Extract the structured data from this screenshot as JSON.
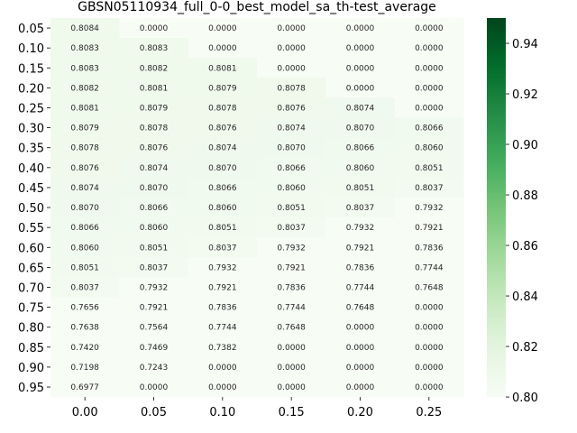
{
  "chart_data": {
    "type": "heatmap",
    "title": "GBSN05110934_full_0-0_best_model_sa_th-test_average",
    "xlabel": "",
    "ylabel": "",
    "x_categories": [
      "0.00",
      "0.05",
      "0.10",
      "0.15",
      "0.20",
      "0.25"
    ],
    "y_categories": [
      "0.05",
      "0.10",
      "0.15",
      "0.20",
      "0.25",
      "0.30",
      "0.35",
      "0.40",
      "0.45",
      "0.50",
      "0.55",
      "0.60",
      "0.65",
      "0.70",
      "0.75",
      "0.80",
      "0.85",
      "0.90",
      "0.95"
    ],
    "values": [
      [
        "0.8084",
        "0.0000",
        "0.0000",
        "0.0000",
        "0.0000",
        "0.0000"
      ],
      [
        "0.8083",
        "0.8083",
        "0.0000",
        "0.0000",
        "0.0000",
        "0.0000"
      ],
      [
        "0.8083",
        "0.8082",
        "0.8081",
        "0.0000",
        "0.0000",
        "0.0000"
      ],
      [
        "0.8082",
        "0.8081",
        "0.8079",
        "0.8078",
        "0.0000",
        "0.0000"
      ],
      [
        "0.8081",
        "0.8079",
        "0.8078",
        "0.8076",
        "0.8074",
        "0.0000"
      ],
      [
        "0.8079",
        "0.8078",
        "0.8076",
        "0.8074",
        "0.8070",
        "0.8066"
      ],
      [
        "0.8078",
        "0.8076",
        "0.8074",
        "0.8070",
        "0.8066",
        "0.8060"
      ],
      [
        "0.8076",
        "0.8074",
        "0.8070",
        "0.8066",
        "0.8060",
        "0.8051"
      ],
      [
        "0.8074",
        "0.8070",
        "0.8066",
        "0.8060",
        "0.8051",
        "0.8037"
      ],
      [
        "0.8070",
        "0.8066",
        "0.8060",
        "0.8051",
        "0.8037",
        "0.7932"
      ],
      [
        "0.8066",
        "0.8060",
        "0.8051",
        "0.8037",
        "0.7932",
        "0.7921"
      ],
      [
        "0.8060",
        "0.8051",
        "0.8037",
        "0.7932",
        "0.7921",
        "0.7836"
      ],
      [
        "0.8051",
        "0.8037",
        "0.7932",
        "0.7921",
        "0.7836",
        "0.7744"
      ],
      [
        "0.8037",
        "0.7932",
        "0.7921",
        "0.7836",
        "0.7744",
        "0.7648"
      ],
      [
        "0.7656",
        "0.7921",
        "0.7836",
        "0.7744",
        "0.7648",
        "0.0000"
      ],
      [
        "0.7638",
        "0.7564",
        "0.7744",
        "0.7648",
        "0.0000",
        "0.0000"
      ],
      [
        "0.7420",
        "0.7469",
        "0.7382",
        "0.0000",
        "0.0000",
        "0.0000"
      ],
      [
        "0.7198",
        "0.7243",
        "0.0000",
        "0.0000",
        "0.0000",
        "0.0000"
      ],
      [
        "0.6977",
        "0.0000",
        "0.0000",
        "0.0000",
        "0.0000",
        "0.0000"
      ]
    ],
    "colormap": "Greens",
    "color_range": [
      0.8,
      0.95
    ],
    "colorbar_ticks": [
      "0.80",
      "0.82",
      "0.84",
      "0.86",
      "0.88",
      "0.90",
      "0.92",
      "0.94"
    ],
    "grid": false
  }
}
